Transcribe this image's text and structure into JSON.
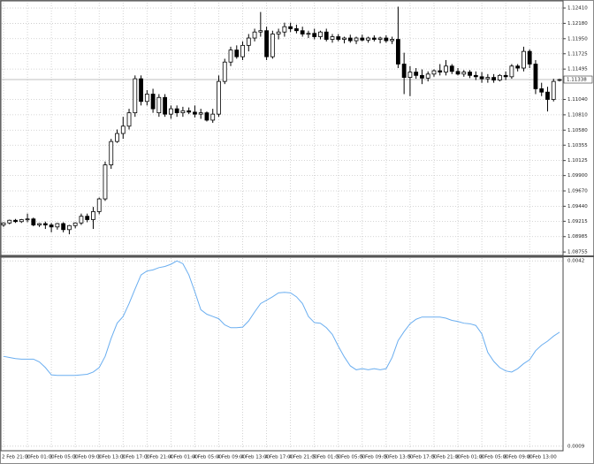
{
  "chart_data": [
    {
      "type": "candlestick",
      "categories": [
        "2 Feb 21:00",
        null,
        null,
        null,
        "3 Feb 01:00",
        null,
        null,
        null,
        "3 Feb 05:00",
        null,
        null,
        null,
        "3 Feb 09:00",
        null,
        null,
        null,
        "3 Feb 13:00",
        null,
        null,
        null,
        "3 Feb 17:00",
        null,
        null,
        null,
        "3 Feb 21:00",
        null,
        null,
        null,
        "4 Feb 01:00",
        null,
        null,
        null,
        "4 Feb 05:00",
        null,
        null,
        null,
        "4 Feb 09:00",
        null,
        null,
        null,
        "4 Feb 13:00",
        null,
        null,
        null,
        "4 Feb 17:00",
        null,
        null,
        null,
        "4 Feb 21:00",
        null,
        null,
        null,
        "5 Feb 01:00",
        null,
        null,
        null,
        "5 Feb 05:00",
        null,
        null,
        null,
        "5 Feb 09:00",
        null,
        null,
        null,
        "5 Feb 13:00",
        null,
        null,
        null,
        "5 Feb 17:00",
        null,
        null,
        null,
        "5 Feb 21:00",
        null,
        null,
        null,
        "8 Feb 01:00",
        null,
        null,
        null,
        "8 Feb 05:00",
        null,
        null,
        null,
        "8 Feb 09:00",
        null,
        null,
        null,
        "8 Feb 13:00",
        null,
        null,
        null,
        null,
        null
      ],
      "values": [
        [
          1.0916,
          1.092,
          1.0913,
          1.0919
        ],
        [
          1.0919,
          1.0924,
          1.0917,
          1.0923
        ],
        [
          1.0923,
          1.0925,
          1.0919,
          1.0921
        ],
        [
          1.0921,
          1.0925,
          1.0919,
          1.0924
        ],
        [
          1.0924,
          1.0933,
          1.092,
          1.0925
        ],
        [
          1.0925,
          1.0927,
          1.0914,
          1.0916
        ],
        [
          1.0916,
          1.0919,
          1.0913,
          1.0918
        ],
        [
          1.0918,
          1.0921,
          1.091,
          1.0916
        ],
        [
          1.0916,
          1.0919,
          1.0905,
          1.0913
        ],
        [
          1.0913,
          1.0919,
          1.0909,
          1.0918
        ],
        [
          1.0918,
          1.092,
          1.0905,
          1.0909
        ],
        [
          1.0909,
          1.0916,
          1.0902,
          1.0915
        ],
        [
          1.0915,
          1.092,
          1.0911,
          1.0919
        ],
        [
          1.0919,
          1.0933,
          1.0916,
          1.0929
        ],
        [
          1.0929,
          1.0933,
          1.092,
          1.0924
        ],
        [
          1.0924,
          1.0943,
          1.091,
          1.0936
        ],
        [
          1.0936,
          1.0957,
          1.0932,
          1.0955
        ],
        [
          1.0955,
          1.1011,
          1.0952,
          1.1006
        ],
        [
          1.1006,
          1.1045,
          1.1,
          1.1041
        ],
        [
          1.1041,
          1.1059,
          1.1039,
          1.1053
        ],
        [
          1.1053,
          1.1078,
          1.1045,
          1.1064
        ],
        [
          1.1064,
          1.109,
          1.1059,
          1.1084
        ],
        [
          1.1084,
          1.114,
          1.1078,
          1.1135
        ],
        [
          1.1135,
          1.114,
          1.1095,
          1.1101
        ],
        [
          1.1101,
          1.1118,
          1.1095,
          1.1112
        ],
        [
          1.1112,
          1.112,
          1.1084,
          1.109
        ],
        [
          1.1084,
          1.1112,
          1.1078,
          1.1107
        ],
        [
          1.1107,
          1.1112,
          1.1078,
          1.1082
        ],
        [
          1.1082,
          1.1095,
          1.1075,
          1.109
        ],
        [
          1.109,
          1.1095,
          1.1078,
          1.1084
        ],
        [
          1.1084,
          1.1093,
          1.1078,
          1.1087
        ],
        [
          1.1087,
          1.1092,
          1.1082,
          1.1085
        ],
        [
          1.1085,
          1.1095,
          1.1077,
          1.1082
        ],
        [
          1.1082,
          1.109,
          1.1075,
          1.1084
        ],
        [
          1.1084,
          1.1086,
          1.1071,
          1.1073
        ],
        [
          1.1073,
          1.109,
          1.1069,
          1.1082
        ],
        [
          1.1082,
          1.114,
          1.1078,
          1.1131
        ],
        [
          1.1131,
          1.1165,
          1.1127,
          1.116
        ],
        [
          1.116,
          1.1183,
          1.1154,
          1.1178
        ],
        [
          1.1178,
          1.1185,
          1.1165,
          1.1168
        ],
        [
          1.1168,
          1.1191,
          1.1163,
          1.1185
        ],
        [
          1.1185,
          1.1202,
          1.1176,
          1.1196
        ],
        [
          1.1196,
          1.121,
          1.1191,
          1.1205
        ],
        [
          1.1205,
          1.1235,
          1.1198,
          1.1207
        ],
        [
          1.1207,
          1.1213,
          1.1163,
          1.1168
        ],
        [
          1.1168,
          1.1207,
          1.1165,
          1.1202
        ],
        [
          1.1202,
          1.121,
          1.1194,
          1.1205
        ],
        [
          1.1205,
          1.1219,
          1.1198,
          1.1213
        ],
        [
          1.1213,
          1.1219,
          1.1205,
          1.121
        ],
        [
          1.121,
          1.1216,
          1.1203,
          1.1207
        ],
        [
          1.1207,
          1.1213,
          1.1198,
          1.1202
        ],
        [
          1.1202,
          1.1207,
          1.1196,
          1.1203
        ],
        [
          1.1203,
          1.121,
          1.1194,
          1.1198
        ],
        [
          1.1198,
          1.1207,
          1.1194,
          1.1205
        ],
        [
          1.1205,
          1.121,
          1.1191,
          1.1194
        ],
        [
          1.1194,
          1.1202,
          1.1189,
          1.1198
        ],
        [
          1.1198,
          1.1202,
          1.1191,
          1.1194
        ],
        [
          1.1194,
          1.1198,
          1.1188,
          1.1196
        ],
        [
          1.1196,
          1.1201,
          1.1189,
          1.1192
        ],
        [
          1.1192,
          1.1198,
          1.1187,
          1.1196
        ],
        [
          1.1196,
          1.1201,
          1.1191,
          1.1193
        ],
        [
          1.1193,
          1.1198,
          1.1189,
          1.1196
        ],
        [
          1.1196,
          1.12,
          1.1191,
          1.1194
        ],
        [
          1.1194,
          1.1198,
          1.1188,
          1.1196
        ],
        [
          1.1196,
          1.12,
          1.1189,
          1.1192
        ],
        [
          1.1192,
          1.1198,
          1.1187,
          1.1194
        ],
        [
          1.1194,
          1.1243,
          1.1151,
          1.1157
        ],
        [
          1.1157,
          1.1174,
          1.1112,
          1.1137
        ],
        [
          1.1137,
          1.1154,
          1.1109,
          1.1145
        ],
        [
          1.1145,
          1.1151,
          1.1135,
          1.114
        ],
        [
          1.114,
          1.1149,
          1.1127,
          1.1136
        ],
        [
          1.1136,
          1.1146,
          1.1131,
          1.1142
        ],
        [
          1.1142,
          1.1149,
          1.1138,
          1.1147
        ],
        [
          1.1147,
          1.1157,
          1.114,
          1.1145
        ],
        [
          1.1145,
          1.1163,
          1.114,
          1.1154
        ],
        [
          1.1154,
          1.1157,
          1.1142,
          1.1146
        ],
        [
          1.1146,
          1.1151,
          1.114,
          1.1142
        ],
        [
          1.1142,
          1.1148,
          1.1138,
          1.1145
        ],
        [
          1.1145,
          1.1148,
          1.1136,
          1.114
        ],
        [
          1.114,
          1.1146,
          1.1133,
          1.1138
        ],
        [
          1.1138,
          1.1145,
          1.1129,
          1.1135
        ],
        [
          1.1135,
          1.1142,
          1.1129,
          1.1137
        ],
        [
          1.1137,
          1.1142,
          1.1129,
          1.1133
        ],
        [
          1.1133,
          1.1142,
          1.1131,
          1.114
        ],
        [
          1.114,
          1.1146,
          1.1133,
          1.1138
        ],
        [
          1.1138,
          1.1157,
          1.1135,
          1.1154
        ],
        [
          1.1154,
          1.1157,
          1.1146,
          1.1151
        ],
        [
          1.1151,
          1.1183,
          1.1146,
          1.1176
        ],
        [
          1.1176,
          1.1179,
          1.1151,
          1.1157
        ],
        [
          1.1157,
          1.1163,
          1.1112,
          1.112
        ],
        [
          1.112,
          1.1129,
          1.1109,
          1.1115
        ],
        [
          1.1115,
          1.1123,
          1.1086,
          1.1104
        ],
        [
          1.1104,
          1.1135,
          1.1101,
          1.1131
        ],
        [
          1.1133,
          1.1135,
          1.1131,
          1.11338
        ]
      ],
      "up_color": "#ffffff",
      "down_color": "#000000",
      "ylim": [
        1.0873,
        1.1249
      ],
      "yticks": [
        {
          "value": 1.1241,
          "label": "1.12410"
        },
        {
          "value": 1.1218,
          "label": "1.12180"
        },
        {
          "value": 1.1195,
          "label": "1.11950"
        },
        {
          "value": 1.11725,
          "label": "1.11725"
        },
        {
          "value": 1.11495,
          "label": "1.11495"
        },
        {
          "value": 1.1104,
          "label": "1.11040"
        },
        {
          "value": 1.1081,
          "label": "1.10810"
        },
        {
          "value": 1.1058,
          "label": "1.10580"
        },
        {
          "value": 1.10355,
          "label": "1.10355"
        },
        {
          "value": 1.10125,
          "label": "1.10125"
        },
        {
          "value": 1.099,
          "label": "1.09900"
        },
        {
          "value": 1.0967,
          "label": "1.09670"
        },
        {
          "value": 1.0944,
          "label": "1.09440"
        },
        {
          "value": 1.09215,
          "label": "1.09215"
        },
        {
          "value": 1.08985,
          "label": "1.08985"
        },
        {
          "value": 1.08755,
          "label": "1.08755"
        }
      ],
      "current_price": {
        "value": 1.11338,
        "label": "1.11338"
      },
      "grid": true
    },
    {
      "type": "line",
      "color": "#6aaef0",
      "values": [
        0.0025,
        0.00248,
        0.00246,
        0.00245,
        0.00245,
        0.00245,
        0.0024,
        0.0023,
        0.00217,
        0.00216,
        0.00216,
        0.00216,
        0.00216,
        0.00217,
        0.00218,
        0.00222,
        0.0023,
        0.0025,
        0.00282,
        0.00309,
        0.00321,
        0.00344,
        0.0037,
        0.00395,
        0.00402,
        0.00404,
        0.00408,
        0.0041,
        0.00414,
        0.0042,
        0.00415,
        0.00395,
        0.00365,
        0.00333,
        0.00325,
        0.00321,
        0.00317,
        0.00306,
        0.00301,
        0.00301,
        0.00302,
        0.00313,
        0.00329,
        0.00344,
        0.0035,
        0.00356,
        0.00363,
        0.00364,
        0.00363,
        0.00356,
        0.00344,
        0.00321,
        0.0031,
        0.00309,
        0.00301,
        0.00289,
        0.00268,
        0.00249,
        0.00233,
        0.00226,
        0.00228,
        0.00226,
        0.00228,
        0.00226,
        0.00228,
        0.00248,
        0.00278,
        0.00294,
        0.00308,
        0.00316,
        0.0032,
        0.0032,
        0.0032,
        0.0032,
        0.00318,
        0.00314,
        0.00312,
        0.00309,
        0.00308,
        0.00305,
        0.0029,
        0.00257,
        0.00241,
        0.0023,
        0.00224,
        0.00222,
        0.00228,
        0.00237,
        0.00244,
        0.0026,
        0.0027,
        0.00277,
        0.00286,
        0.00293
      ],
      "ylim": [
        0.00085,
        0.00425
      ],
      "yticks": [
        0.0042,
        0.0009
      ],
      "grid": true
    }
  ]
}
